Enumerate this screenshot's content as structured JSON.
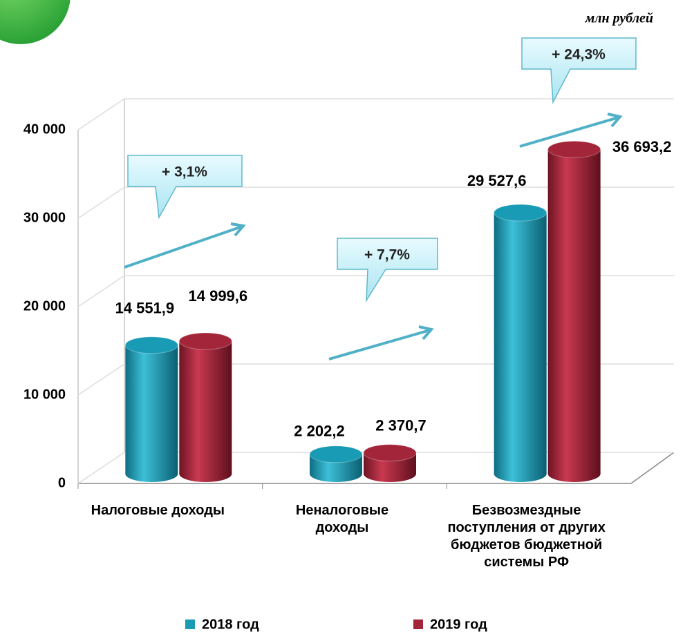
{
  "chart_data": {
    "type": "bar3d",
    "unit": "млн рублей",
    "categories": [
      "Налоговые доходы",
      "Неналоговые доходы",
      "Безвозмездные поступления от других бюджетов бюджетной системы РФ"
    ],
    "series": [
      {
        "name": "2018 год",
        "color": "#1a9bb5",
        "values": [
          14551.9,
          2202.2,
          29527.6
        ],
        "value_labels": [
          "14 551,9",
          "2 202,2",
          "29 527,6"
        ]
      },
      {
        "name": "2019 год",
        "color": "#a3253a",
        "values": [
          14999.6,
          2370.7,
          36693.2
        ],
        "value_labels": [
          "14 999,6",
          "2 370,7",
          "36 693,2"
        ]
      }
    ],
    "annotations": [
      "+ 3,1%",
      "+ 7,7%",
      "+ 24,3%"
    ],
    "ylim": [
      0,
      40000
    ],
    "yticks": [
      0,
      {
        "value": 10000,
        "label": "10 000"
      },
      {
        "value": 20000,
        "label": "20 000"
      },
      {
        "value": 30000,
        "label": "30 000"
      },
      {
        "value": 40000,
        "label": "40 000"
      }
    ],
    "grid": true,
    "legend": "bottom"
  }
}
